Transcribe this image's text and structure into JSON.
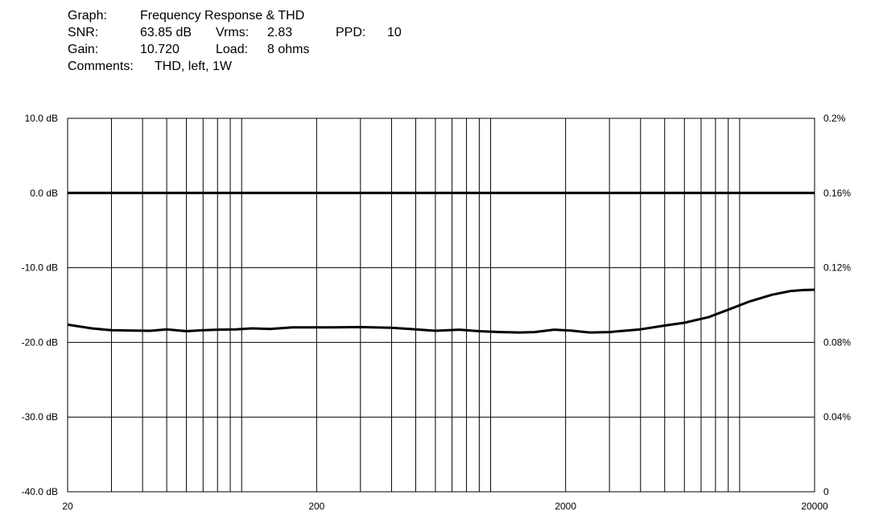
{
  "header": {
    "graph_label": "Graph:",
    "graph_value": "Frequency Response & THD",
    "snr_label": "SNR:",
    "snr_value": "63.85 dB",
    "vrms_label": "Vrms:",
    "vrms_value": "2.83",
    "ppd_label": "PPD:",
    "ppd_value": "10",
    "gain_label": "Gain:",
    "gain_value": "10.720",
    "load_label": "Load:",
    "load_value": "8 ohms",
    "comments_label": "Comments:",
    "comments_value": "THD, left, 1W"
  },
  "chart_data": {
    "type": "line",
    "x_scale": "log",
    "xlim": [
      20,
      20000
    ],
    "x_ticks": [
      20,
      200,
      2000,
      20000
    ],
    "x_tick_labels": [
      "20",
      "200",
      "2000",
      "20000"
    ],
    "ylim_left": [
      -40,
      10
    ],
    "y_left_ticks": [
      10,
      0,
      -10,
      -20,
      -30,
      -40
    ],
    "y_left_tick_labels": [
      "10.0 dB",
      "0.0 dB",
      "-10.0 dB",
      "-20.0 dB",
      "-30.0 dB",
      "-40.0 dB"
    ],
    "ylim_right": [
      0,
      0.2
    ],
    "y_right_ticks": [
      0.2,
      0.16,
      0.12,
      0.08,
      0.04,
      0
    ],
    "y_right_tick_labels": [
      "0.2%",
      "0.16%",
      "0.12%",
      "0.08%",
      "0.04%",
      "0"
    ],
    "grid": true,
    "series": [
      {
        "axis": "left",
        "x": [
          20,
          20000
        ],
        "y": [
          0,
          0
        ]
      },
      {
        "axis": "right",
        "x": [
          20,
          25,
          30,
          37,
          43,
          50,
          60,
          70,
          80,
          95,
          110,
          130,
          160,
          190,
          230,
          300,
          400,
          500,
          600,
          750,
          900,
          1100,
          1300,
          1500,
          1800,
          2100,
          2500,
          3000,
          4000,
          5000,
          6000,
          7500,
          9000,
          11000,
          13500,
          16000,
          18000,
          20000
        ],
        "y": [
          0.0895,
          0.0875,
          0.0865,
          0.0863,
          0.0862,
          0.087,
          0.086,
          0.0865,
          0.0868,
          0.087,
          0.0875,
          0.0872,
          0.088,
          0.088,
          0.088,
          0.0882,
          0.0878,
          0.087,
          0.0862,
          0.0868,
          0.086,
          0.0855,
          0.0853,
          0.0855,
          0.0868,
          0.0863,
          0.0853,
          0.0855,
          0.087,
          0.089,
          0.0905,
          0.0935,
          0.0975,
          0.102,
          0.1055,
          0.1075,
          0.108,
          0.1082
        ]
      }
    ]
  }
}
